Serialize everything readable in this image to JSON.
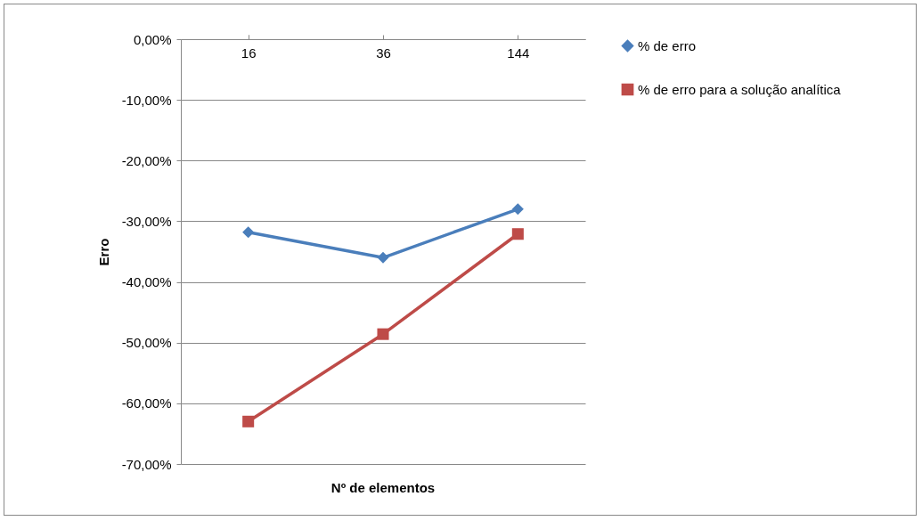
{
  "chart_data": {
    "type": "line",
    "xlabel": "Nº de elementos",
    "ylabel": "Erro",
    "categories": [
      "16",
      "36",
      "144"
    ],
    "series": [
      {
        "name": "% de erro",
        "color": "#4a7ebb",
        "marker": "diamond",
        "values": [
          -31.8,
          -36.0,
          -28.0
        ]
      },
      {
        "name": "% de erro para a solução analítica",
        "color": "#be4b48",
        "marker": "square",
        "values": [
          -63.0,
          -48.6,
          -32.1
        ]
      }
    ],
    "ylim": [
      -70,
      0
    ],
    "yticks": [
      {
        "value": 0,
        "label": "0,00%"
      },
      {
        "value": -10,
        "label": "-10,00%"
      },
      {
        "value": -20,
        "label": "-20,00%"
      },
      {
        "value": -30,
        "label": "-30,00%"
      },
      {
        "value": -40,
        "label": "-40,00%"
      },
      {
        "value": -50,
        "label": "-50,00%"
      },
      {
        "value": -60,
        "label": "-60,00%"
      },
      {
        "value": -70,
        "label": "-70,00%"
      }
    ],
    "grid": "y",
    "legend": "right",
    "line_style": "solid"
  }
}
